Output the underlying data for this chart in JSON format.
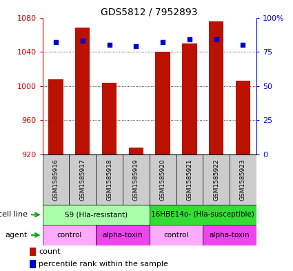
{
  "title": "GDS5812 / 7952893",
  "samples": [
    "GSM1585916",
    "GSM1585917",
    "GSM1585918",
    "GSM1585919",
    "GSM1585920",
    "GSM1585921",
    "GSM1585922",
    "GSM1585923"
  ],
  "counts": [
    1008,
    1068,
    1004,
    928,
    1040,
    1050,
    1076,
    1006
  ],
  "percentiles": [
    82,
    83,
    80,
    79,
    82,
    84,
    84,
    80
  ],
  "ylim": [
    920,
    1080
  ],
  "yticks": [
    920,
    960,
    1000,
    1040,
    1080
  ],
  "right_yticks": [
    0,
    25,
    50,
    75,
    100
  ],
  "right_ylim": [
    0,
    100
  ],
  "bar_color": "#bb1100",
  "dot_color": "#0000cc",
  "bar_bottom": 920,
  "cell_line_groups": [
    {
      "label": "S9 (Hla-resistant)",
      "start": 0,
      "end": 4,
      "color": "#aaffaa"
    },
    {
      "label": "16HBE14o- (Hla-susceptible)",
      "start": 4,
      "end": 8,
      "color": "#33dd33"
    }
  ],
  "agent_groups": [
    {
      "label": "control",
      "start": 0,
      "end": 2,
      "color": "#ffaaff"
    },
    {
      "label": "alpha-toxin",
      "start": 2,
      "end": 4,
      "color": "#ee44ee"
    },
    {
      "label": "control",
      "start": 4,
      "end": 6,
      "color": "#ffaaff"
    },
    {
      "label": "alpha-toxin",
      "start": 6,
      "end": 8,
      "color": "#ee44ee"
    }
  ],
  "left_axis_color": "#cc0000",
  "right_axis_color": "#0000cc",
  "sample_box_color": "#cccccc",
  "grid_color": "black",
  "fig_width": 4.25,
  "fig_height": 3.93,
  "dpi": 100
}
